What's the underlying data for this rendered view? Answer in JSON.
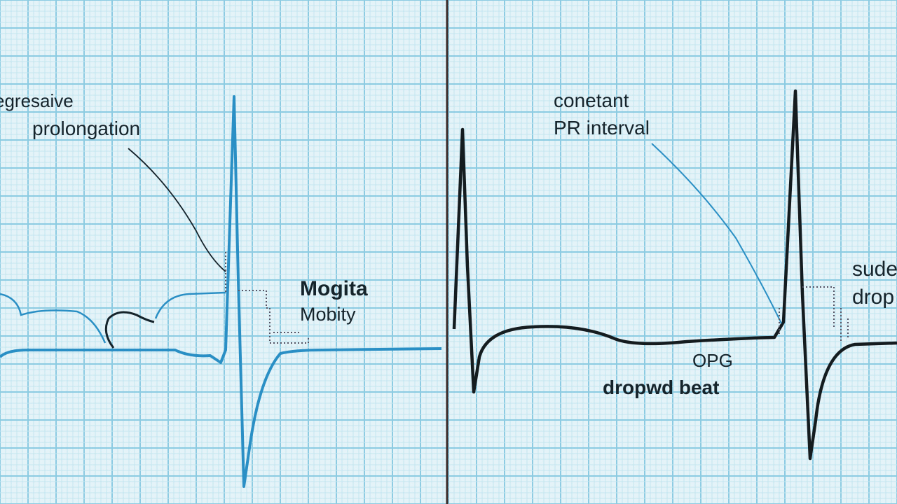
{
  "left_panel": {
    "labels": {
      "line1": "egresaive",
      "line2": "prolongation",
      "mid1": "Mogita",
      "mid2": "Mobity"
    },
    "trace_color": "#2a8fc4"
  },
  "right_panel": {
    "labels": {
      "line1": "conetant",
      "line2": "PR interval",
      "qrs": "OPG",
      "dropped": "dropwd beat",
      "edge1": "sude",
      "edge2": "drop"
    },
    "trace_color": "#151c20",
    "pointer_color": "#2a8fc4"
  },
  "colors": {
    "background": "#e4f3f8",
    "grid_major": "#8ccbe2",
    "grid_minor": "#c4e4ef",
    "divider": "#3a2a28"
  }
}
